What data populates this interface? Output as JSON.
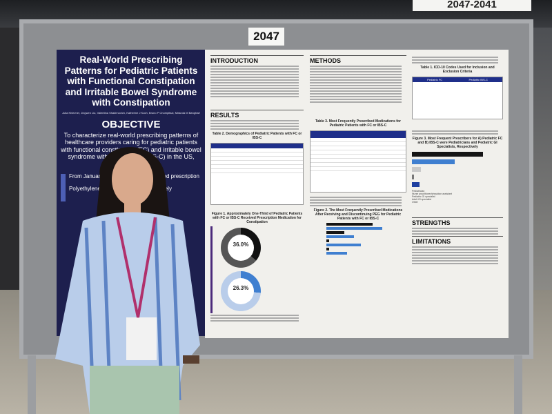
{
  "booth_sign": "2047-2041",
  "board_number": "2047",
  "poster": {
    "title": "Real-World Prescribing Patterns for Pediatric Patients with Functional Constipation and Irritable Bowel Syndrome with Constipation",
    "authors": "Julia Khlevner, Jingwen Liu, Valentina Shakhnovich, Katherine J Koch, Bruno P Chumpitazi, Miranda M Banghart",
    "objective_heading": "OBJECTIVE",
    "objective_text": "To characterize real-world prescribing patterns of healthcare providers caring for pediatric patients with functional constipation (FC) and irritable bowel syndrome with constipation (IBS-C) in the US, using a",
    "objective_bullets": [
      "From January ... children and ... received prescription",
      "Polyethylene ... medication ... respectively"
    ],
    "sections": {
      "introduction": "INTRODUCTION",
      "methods": "METHODS",
      "results": "RESULTS",
      "strengths": "STRENGTHS",
      "limitations": "LIMITATIONS"
    },
    "table1_title": "Table 1. ICD-10 Codes Used for Inclusion and Exclusion Criteria",
    "table1_cols": [
      "Pediatric FC",
      "Pediatric IBS-C"
    ],
    "table2_title": "Table 2. Demographics of Pediatric Patients with FC or IBS-C",
    "table3_title": "Table 3. Most Frequently Prescribed Medications for Pediatric Patients with FC or IBS-C",
    "figure1_title": "Figure 1. Approximately One-Third of Pediatric Patients with FC or IBS-C Received Prescription Medication for Constipation",
    "figure1_donuts": [
      {
        "label": "Pediatric FC",
        "value": "36.0%"
      },
      {
        "label": "Pediatric IBS-C",
        "value": "26.3%"
      }
    ],
    "figure2_title": "Figure 2. The Most Frequently Prescribed Medications After Receiving and Discontinuing PEG for Pediatric Patients with FC or IBS-C",
    "figure3_title": "Figure 3. Most Frequent Prescribers for A) Pediatric FC and B) IBS-C were Pediatricians and Pediatric GI Specialists, Respectively",
    "figure3_legend": [
      "Pediatrician",
      "Nurse practitioner/physician assistant",
      "Pediatric GI specialist",
      "Adult GI specialist",
      "Other"
    ],
    "figure3_values": [
      60.3,
      36.3,
      7.5,
      1.5,
      6.6
    ],
    "figure2_values": [
      27.8,
      33.9,
      10.9,
      16.8,
      1.7,
      20.9,
      1.5,
      12.3
    ]
  },
  "colors": {
    "navy": "#1d1f4e",
    "blue": "#3f7fd0",
    "black": "#151515"
  }
}
